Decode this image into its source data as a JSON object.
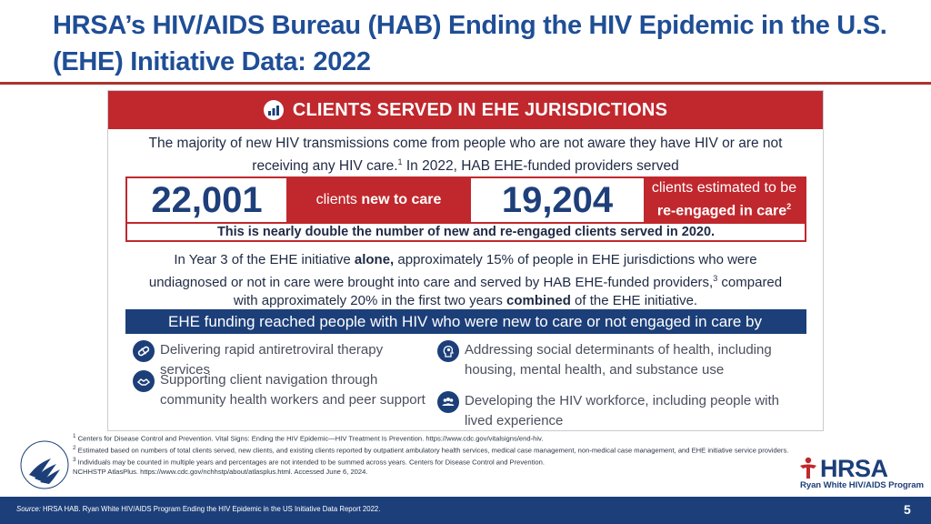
{
  "slide": {
    "title": "HRSA’s HIV/AIDS Bureau (HAB) Ending the HIV Epidemic in the U.S. (EHE) Initiative Data: 2022",
    "page_number": "5"
  },
  "panel": {
    "header": "CLIENTS SERVED IN EHE JURISDICTIONS",
    "intro_line1": "The majority of new HIV transmissions come from people who are not aware they have HIV or are not",
    "intro_line2_a": "receiving any HIV care.",
    "intro_line2_sup": "1",
    "intro_line2_b": " In 2022, HAB EHE-funded providers served",
    "stat_new": "22,001",
    "stat_new_label_a": "clients ",
    "stat_new_label_b": "new to care",
    "stat_reengaged": "19,204",
    "stat_reengaged_label_line1": "clients estimated to be",
    "stat_reengaged_label_line2": "re-engaged in care",
    "stat_reengaged_sup": "2",
    "stats_note": "This is nearly double the number of new and re-engaged clients served in 2020.",
    "year3_a": "In Year 3 of the EHE initiative ",
    "year3_bold1": "alone,",
    "year3_b": " approximately 15% of people in EHE jurisdictions who were",
    "year3_c": "undiagnosed or not in care were brought into care and served by HAB EHE-funded providers,",
    "year3_sup": "3",
    "year3_d": " compared",
    "year3_e": "with approximately 20% in the first two years ",
    "year3_bold2": "combined",
    "year3_f": " of the EHE initiative.",
    "funding_bar": "EHE funding reached people with HIV who were new to care or not engaged in care by",
    "items": [
      {
        "label": "Delivering rapid antiretroviral therapy services",
        "icon": "pill-icon"
      },
      {
        "label": "Supporting client navigation through community health workers and peer support",
        "icon": "handshake-icon"
      },
      {
        "label": "Addressing social determinants of health, including housing, mental health, and substance use",
        "icon": "head-gears-icon"
      },
      {
        "label": "Developing the HIV workforce, including people with lived experience",
        "icon": "people-group-icon"
      }
    ]
  },
  "footnotes": {
    "f1": "Centers for Disease Control and Prevention. Vital Signs: Ending the HIV Epidemic—HIV Treatment Is Prevention. https://www.cdc.gov/vitalsigns/end-hiv.",
    "f2": "Estimated based on numbers of total clients served, new clients, and existing clients reported by outpatient ambulatory health services, medical case management, non-medical case management, and EHE initiative service providers.",
    "f3a": "Individuals may be counted in multiple years and percentages are not intended to be summed across years. Centers for Disease Control and Prevention.",
    "f3b": "NCHHSTP AtlasPlus. https://www.cdc.gov/nchhstp/about/atlasplus.html. Accessed June 6, 2024.",
    "sup1": "1",
    "sup2": "2",
    "sup3": "3"
  },
  "logos": {
    "hrsa_word": "HRSA",
    "hrsa_sub": "Ryan White HIV/AIDS Program"
  },
  "source": {
    "label": "Source:",
    "text": " HRSA HAB. Ryan White HIV/AIDS Program Ending the HIV Epidemic in the US Initiative Data Report 2022."
  },
  "colors": {
    "title_blue": "#1f4e96",
    "accent_red": "#c0282d",
    "navy": "#1c3f79"
  }
}
